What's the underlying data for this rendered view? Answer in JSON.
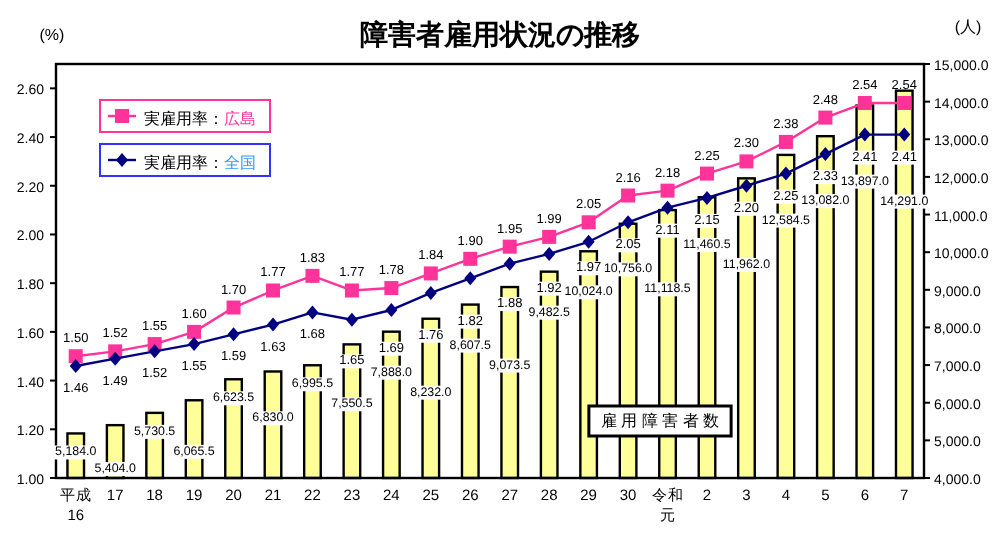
{
  "chart_data": {
    "type": "bar",
    "title": "障害者雇用状況の推移",
    "ylabel": "(%)",
    "y2label": "(人)",
    "categories": [
      "平成16",
      "17",
      "18",
      "19",
      "20",
      "21",
      "22",
      "23",
      "24",
      "25",
      "26",
      "27",
      "28",
      "29",
      "30",
      "令和元",
      "2",
      "3",
      "4",
      "5",
      "6",
      "7"
    ],
    "series": [
      {
        "name": "雇用障害者数",
        "axis": "y2",
        "color": "#ffff99",
        "values": [
          5184.0,
          5404.0,
          5730.5,
          6065.5,
          6623.5,
          6830.0,
          6995.5,
          7550.5,
          7888.0,
          8232.0,
          8607.5,
          9073.5,
          9482.5,
          10024.0,
          10756.0,
          11118.5,
          11460.5,
          11962.0,
          12584.5,
          13082.0,
          13897.0,
          14291.0
        ],
        "value_labels": [
          "5,184.0",
          "5,404.0",
          "5,730.5",
          "6,065.5",
          "6,623.5",
          "6,830.0",
          "6,995.5",
          "7,550.5",
          "7,888.0",
          "8,232.0",
          "8,607.5",
          "9,073.5",
          "9,482.5",
          "10,024.0",
          "10,756.0",
          "11,118.5",
          "11,460.5",
          "11,962.0",
          "12,584.5",
          "13,082.0",
          "13,897.0",
          "14,291.0"
        ]
      },
      {
        "name": "実雇用率：広島",
        "type": "line",
        "color": "#ff3399",
        "marker": "square",
        "values": [
          1.5,
          1.52,
          1.55,
          1.6,
          1.7,
          1.77,
          1.83,
          1.77,
          1.78,
          1.84,
          1.9,
          1.95,
          1.99,
          2.05,
          2.16,
          2.18,
          2.25,
          2.3,
          2.38,
          2.48,
          2.54,
          2.54
        ],
        "value_labels": [
          "1.50",
          "1.52",
          "1.55",
          "1.60",
          "1.70",
          "1.77",
          "1.83",
          "1.77",
          "1.78",
          "1.84",
          "1.90",
          "1.95",
          "1.99",
          "2.05",
          "2.16",
          "2.18",
          "2.25",
          "2.30",
          "2.38",
          "2.48",
          "2.54",
          "2.54"
        ]
      },
      {
        "name": "実雇用率：全国",
        "type": "line",
        "color": "#000080",
        "marker": "diamond",
        "values": [
          1.46,
          1.49,
          1.52,
          1.55,
          1.59,
          1.63,
          1.68,
          1.65,
          1.69,
          1.76,
          1.82,
          1.88,
          1.92,
          1.97,
          2.05,
          2.11,
          2.15,
          2.2,
          2.25,
          2.33,
          2.41,
          2.41
        ],
        "value_labels": [
          "1.46",
          "1.49",
          "1.52",
          "1.55",
          "1.59",
          "1.63",
          "1.68",
          "1.65",
          "1.69",
          "1.76",
          "1.82",
          "1.88",
          "1.92",
          "1.97",
          "2.05",
          "2.11",
          "2.15",
          "2.20",
          "2.25",
          "2.33",
          "2.41",
          "2.41"
        ]
      }
    ],
    "ylim": [
      1.0,
      2.7
    ],
    "yticks": [
      {
        "value": 1.0,
        "label": "1.00"
      },
      {
        "value": 1.2,
        "label": "1.20"
      },
      {
        "value": 1.4,
        "label": "1.40"
      },
      {
        "value": 1.6,
        "label": "1.60"
      },
      {
        "value": 1.8,
        "label": "1.80"
      },
      {
        "value": 2.0,
        "label": "2.00"
      },
      {
        "value": 2.2,
        "label": "2.20"
      },
      {
        "value": 2.4,
        "label": "2.40"
      },
      {
        "value": 2.6,
        "label": "2.60"
      }
    ],
    "y2lim": [
      4000,
      15000
    ],
    "y2ticks": [
      {
        "value": 4000,
        "label": "4,000.0"
      },
      {
        "value": 5000,
        "label": "5,000.0"
      },
      {
        "value": 6000,
        "label": "6,000.0"
      },
      {
        "value": 7000,
        "label": "7,000.0"
      },
      {
        "value": 8000,
        "label": "8,000.0"
      },
      {
        "value": 9000,
        "label": "9,000.0"
      },
      {
        "value": 10000,
        "label": "10,000.0"
      },
      {
        "value": 11000,
        "label": "11,000.0"
      },
      {
        "value": 12000,
        "label": "12,000.0"
      },
      {
        "value": 13000,
        "label": "13,000.0"
      },
      {
        "value": 14000,
        "label": "14,000.0"
      },
      {
        "value": 15000,
        "label": "15,000.0"
      }
    ],
    "legend": "top left"
  }
}
